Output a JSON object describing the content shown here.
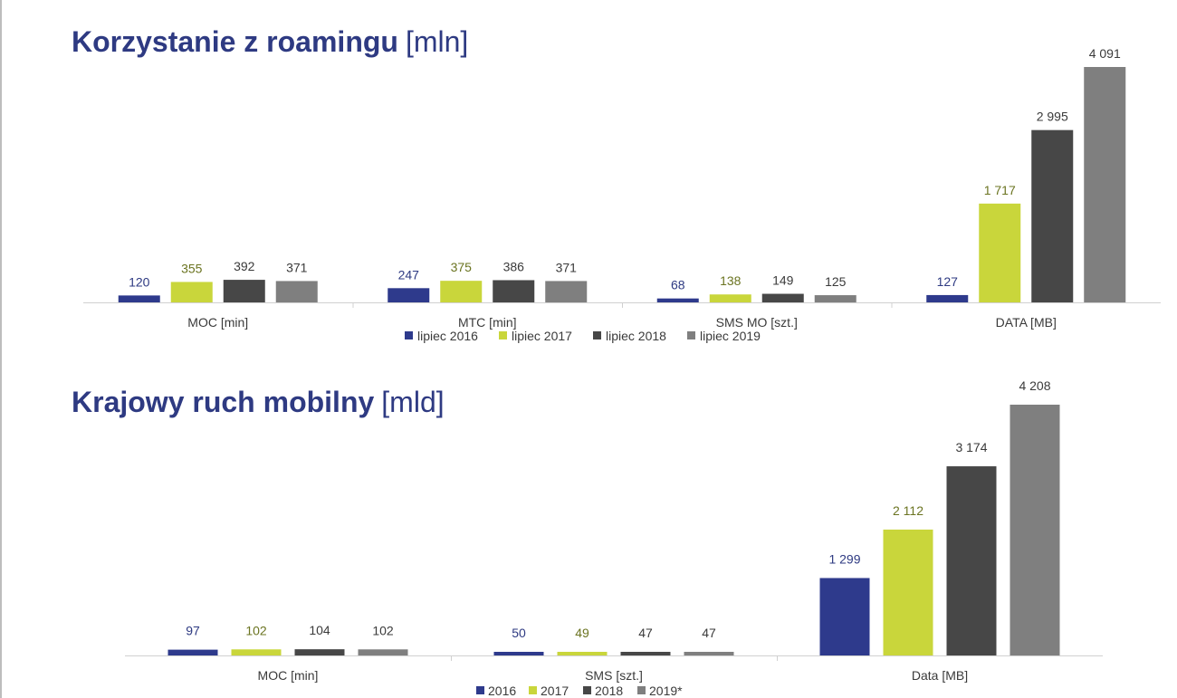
{
  "colors": {
    "s0": "#2e3a8c",
    "s1": "#c9d63b",
    "s2": "#474747",
    "s3": "#7f7f7f",
    "label_s0": "#2e3a82",
    "label_s1": "#6b7421",
    "label_s2": "#3a3a3a",
    "label_s3": "#3a3a3a",
    "axis": "#d0d0d0",
    "text": "#3a3a3a"
  },
  "chart_data": [
    {
      "type": "bar",
      "title": "Korzystanie z roamingu",
      "unit": "[mln]",
      "categories": [
        "MOC [min]",
        "MTC [min]",
        "SMS MO [szt.]",
        "DATA [MB]"
      ],
      "series": [
        {
          "name": "lipiec 2016",
          "values": [
            120,
            247,
            68,
            127
          ],
          "labels": [
            "120",
            "247",
            "68",
            "127"
          ]
        },
        {
          "name": "lipiec 2017",
          "values": [
            355,
            375,
            138,
            1717
          ],
          "labels": [
            "355",
            "375",
            "138",
            "1 717"
          ]
        },
        {
          "name": "lipiec 2018",
          "values": [
            392,
            386,
            149,
            2995
          ],
          "labels": [
            "392",
            "386",
            "149",
            "2 995"
          ]
        },
        {
          "name": "lipiec 2019",
          "values": [
            371,
            371,
            125,
            4091
          ],
          "labels": [
            "371",
            "371",
            "125",
            "4 091"
          ]
        }
      ],
      "ylim": [
        0,
        4091
      ],
      "legend": "bottom"
    },
    {
      "type": "bar",
      "title": "Krajowy ruch mobilny",
      "unit": "[mld]",
      "categories": [
        "MOC [min]",
        "SMS [szt.]",
        "Data [MB]"
      ],
      "series": [
        {
          "name": "2016",
          "values": [
            97,
            50,
            1299
          ],
          "labels": [
            "97",
            "50",
            "1 299"
          ]
        },
        {
          "name": "2017",
          "values": [
            102,
            49,
            2112
          ],
          "labels": [
            "102",
            "49",
            "2 112"
          ]
        },
        {
          "name": "2018",
          "values": [
            104,
            47,
            3174
          ],
          "labels": [
            "104",
            "47",
            "3 174"
          ]
        },
        {
          "name": "2019*",
          "values": [
            102,
            47,
            4208
          ],
          "labels": [
            "102",
            "47",
            "4 208"
          ]
        }
      ],
      "ylim": [
        0,
        4208
      ],
      "legend": "bottom"
    }
  ]
}
